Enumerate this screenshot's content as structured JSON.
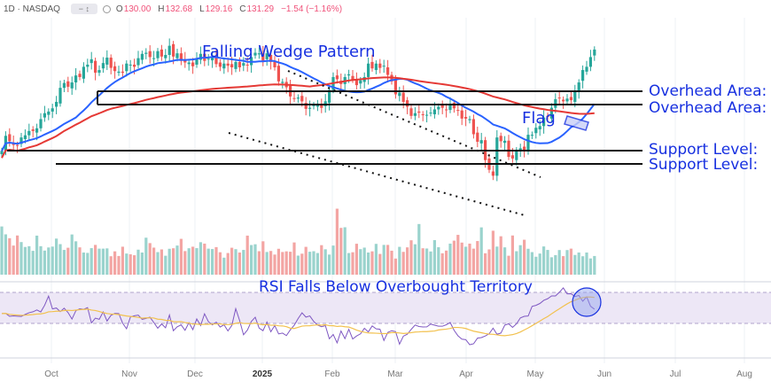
{
  "header": {
    "symbol": "1D · NASDAQ",
    "open_label": "O",
    "open": "130.00",
    "high_label": "H",
    "high": "132.68",
    "low_label": "L",
    "low": "129.16",
    "close_label": "C",
    "close": "131.29",
    "change": "−1.54 (−1.16%)"
  },
  "annotations": {
    "falling_wedge": "Falling Wedge Pattern",
    "flag": "Flag",
    "overhead_1": "Overhead Area:",
    "overhead_2": "Overhead Area:",
    "support_1": "Support Level:",
    "support_2": "Support Level:",
    "rsi_note": "RSI Falls Below Overbought Territory"
  },
  "colors": {
    "up": "#26a69a",
    "down": "#ef5350",
    "ma_fast": "#2962ff",
    "ma_slow": "#e53935",
    "annotation": "#1730e0",
    "rsi": "#7e57c2",
    "rsi_ma": "#f2c14e",
    "rsi_band": "#ede7f6"
  },
  "chart_data": {
    "type": "candlestick",
    "x_ticks": [
      "Oct",
      "Nov",
      "Dec",
      "2025",
      "Feb",
      "Mar",
      "Apr",
      "May",
      "Jun",
      "Jul",
      "Aug"
    ],
    "close": [
      131.3,
      134.1,
      133.1,
      132.4,
      132.3,
      133.8,
      134.2,
      135.0,
      135.0,
      135.5,
      137.2,
      138.3,
      138.6,
      139.2,
      140.4,
      143.0,
      143.9,
      143.2,
      144.0,
      145.3,
      145.0,
      146.9,
      147.3,
      148.3,
      145.8,
      146.3,
      147.6,
      148.6,
      146.7,
      146.1,
      146.0,
      145.8,
      147.5,
      147.3,
      146.9,
      148.5,
      149.3,
      149.5,
      148.7,
      148.5,
      149.8,
      148.8,
      149.1,
      150.8,
      148.8,
      149.4,
      148.0,
      147.7,
      147.7,
      147.0,
      148.5,
      149.3,
      148.0,
      148.4,
      148.7,
      147.4,
      146.9,
      147.5,
      147.1,
      146.8,
      147.8,
      146.8,
      147.6,
      147.2,
      148.7,
      149.5,
      149.4,
      148.0,
      149.4,
      147.8,
      146.8,
      144.2,
      144.1,
      143.1,
      141.4,
      141.0,
      141.2,
      140.5,
      139.1,
      139.3,
      139.8,
      139.9,
      139.3,
      140.5,
      142.6,
      145.0,
      144.6,
      143.7,
      145.0,
      145.5,
      144.5,
      143.5,
      144.4,
      145.0,
      147.5,
      146.6,
      147.5,
      146.7,
      147.1,
      145.4,
      144.2,
      141.8,
      142.1,
      140.4,
      139.5,
      137.8,
      138.3,
      138.4,
      138.0,
      138.0,
      138.4,
      139.0,
      139.5,
      139.3,
      138.9,
      139.9,
      139.2,
      138.8,
      137.3,
      137.3,
      137.2,
      134.4,
      133.0,
      133.3,
      129.6,
      127.8,
      126.7,
      133.8,
      133.1,
      133.2,
      130.2,
      129.9,
      131.4,
      131.8,
      131.5,
      134.3,
      134.3,
      135.6,
      135.9,
      137.5,
      137.6,
      139.3,
      140.9,
      141.1,
      140.5,
      141.0,
      140.7,
      142.2,
      144.0,
      146.3,
      146.9,
      148.7,
      150.1
    ],
    "rsi": [
      57.3,
      57.4,
      55.2,
      55.5,
      55.3,
      55.1,
      56.6,
      57.9,
      58.6,
      60.0,
      58.5,
      63.6,
      70.5,
      60.8,
      61.5,
      58.7,
      61.3,
      58.0,
      53.1,
      59.4,
      60.9,
      60.5,
      61.8,
      50.2,
      53.8,
      52.9,
      58.5,
      51.6,
      55.9,
      57.4,
      57.3,
      50.0,
      45.8,
      54.7,
      55.6,
      56.1,
      52.9,
      53.6,
      54.5,
      50.5,
      46.2,
      49.4,
      46.5,
      56.2,
      44.3,
      47.3,
      48.7,
      44.6,
      50.4,
      45.1,
      53.2,
      48.2,
      57.1,
      51.1,
      48.7,
      50.8,
      47.1,
      48.8,
      44.1,
      48.3,
      61.0,
      52.0,
      41.2,
      44.8,
      51.3,
      54.5,
      46.3,
      44.3,
      50.9,
      43.5,
      48.2,
      41.9,
      42.5,
      40.6,
      45.0,
      48.4,
      53.5,
      57.8,
      54.6,
      55.5,
      51.3,
      48.5,
      47.3,
      48.1,
      38.2,
      41.4,
      35.1,
      44.1,
      38.3,
      45.3,
      38.0,
      40.3,
      41.9,
      46.1,
      43.4,
      47.9,
      45.7,
      45.4,
      36.9,
      43.0,
      44.3,
      43.6,
      34.1,
      40.2,
      41.6,
      45.3,
      48.6,
      47.5,
      47.1,
      47.2,
      49.3,
      48.5,
      47.7,
      47.7,
      48.8,
      50.5,
      44.6,
      40.4,
      37.9,
      37.5,
      33.7,
      34.4,
      38.7,
      39.1,
      40.3,
      42.0,
      46.2,
      41.6,
      42.5,
      48.5,
      49.5,
      46.8,
      49.5,
      54.0,
      55.2,
      55.4,
      62.7,
      63.5,
      64.9,
      67.3,
      68.5,
      70.6,
      70.6,
      73.4,
      76.7,
      72.2,
      72.3,
      70.1,
      71.0,
      66.6,
      69.9,
      62.8,
      60.6
    ],
    "volume": [
      37.4,
      31.3,
      28.3,
      22.6,
      30.4,
      25.3,
      21.5,
      22.1,
      18.5,
      30.3,
      22.1,
      18.7,
      21.1,
      21.8,
      28.0,
      23.7,
      19.2,
      20.9,
      31.2,
      25.9,
      21.2,
      17.2,
      16.9,
      20.6,
      23.1,
      20.2,
      20.2,
      20.4,
      14.3,
      18.1,
      14.5,
      21.7,
      16.4,
      15.8,
      15.1,
      19.4,
      17.2,
      28.7,
      24.5,
      21.0,
      17.5,
      19.6,
      14.7,
      20.1,
      20.5,
      22.6,
      27.8,
      18.3,
      20.5,
      21.7,
      20.6,
      25.2,
      24.1,
      20.2,
      19.9,
      21.4,
      17.4,
      13.2,
      16.8,
      20.9,
      19.8,
      17.2,
      19.2,
      30.3,
      23.0,
      23.6,
      18.2,
      25.9,
      17.6,
      18.4,
      15.6,
      20.1,
      17.6,
      18.1,
      17.8,
      25.0,
      14.8,
      16.3,
      21.6,
      17.8,
      18.2,
      16.8,
      22.9,
      19.7,
      15.6,
      22.6,
      51.2,
      36.3,
      36.8,
      16.8,
      17.4,
      24.0,
      19.8,
      21.0,
      17.2,
      18.1,
      23.9,
      16.1,
      23.1,
      23.1,
      18.6,
      12.5,
      21.6,
      17.7,
      21.2,
      26.7,
      23.6,
      39.3,
      20.5,
      20.3,
      18.0,
      26.8,
      21.3,
      16.6,
      18.7,
      24.1,
      26.4,
      30.9,
      24.9,
      21.7,
      24.1,
      20.2,
      26.1,
      36.7,
      16.6,
      19.6,
      34.1,
      21.8,
      29.8,
      21.2,
      14.7,
      30.4,
      18.2,
      22.9,
      27.1,
      20.1,
      17.5,
      13.9,
      16.4,
      21.9,
      19.2,
      13.5,
      15.2,
      19.1,
      14.4,
      19.1,
      20.2,
      15.3,
      17.2,
      14.3,
      17.2,
      12.6,
      14.5
    ]
  }
}
